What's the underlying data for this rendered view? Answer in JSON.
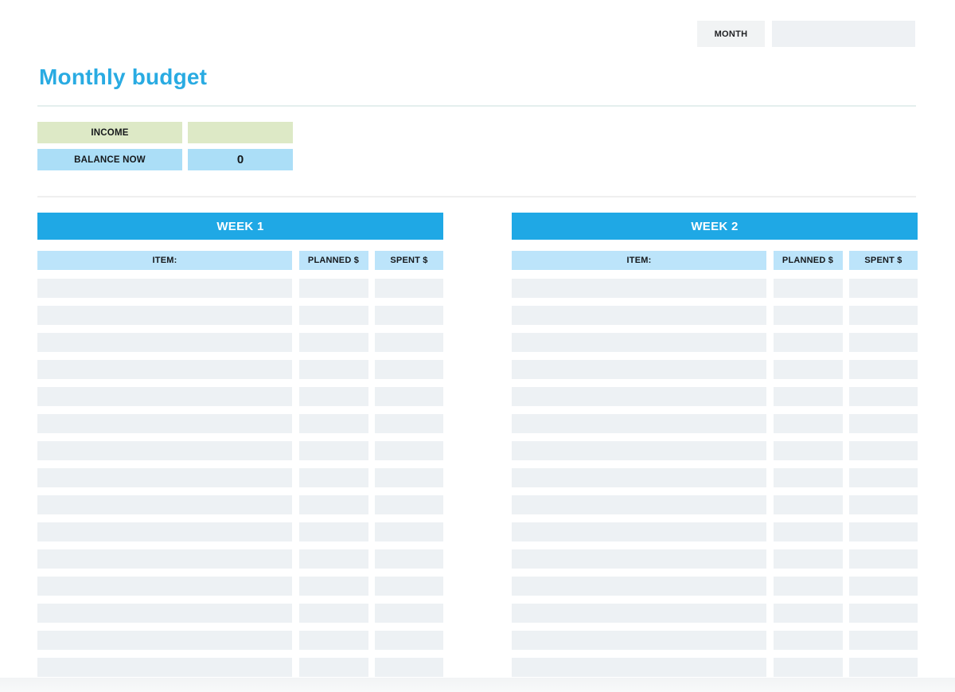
{
  "page": {
    "title": "Monthly budget"
  },
  "month": {
    "label": "MONTH",
    "value": ""
  },
  "summary": {
    "income": {
      "label": "INCOME",
      "value": ""
    },
    "balance": {
      "label": "BALANCE NOW",
      "value": "0"
    }
  },
  "tables": [
    {
      "title": "WEEK 1",
      "columns": [
        "ITEM:",
        "PLANNED $",
        "SPENT $"
      ],
      "row_count": 15,
      "rows_empty": true
    },
    {
      "title": "WEEK 2",
      "columns": [
        "ITEM:",
        "PLANNED $",
        "SPENT $"
      ],
      "row_count": 15,
      "rows_empty": true
    }
  ],
  "colors": {
    "title_blue": "#29abe2",
    "week_bar_blue": "#1fa8e5",
    "column_header_blue": "#bce4fa",
    "balance_blue": "#abdef7",
    "income_green": "#dde9c6",
    "empty_cell_gray": "#edf1f4",
    "month_box_gray": "#f1f3f4"
  }
}
